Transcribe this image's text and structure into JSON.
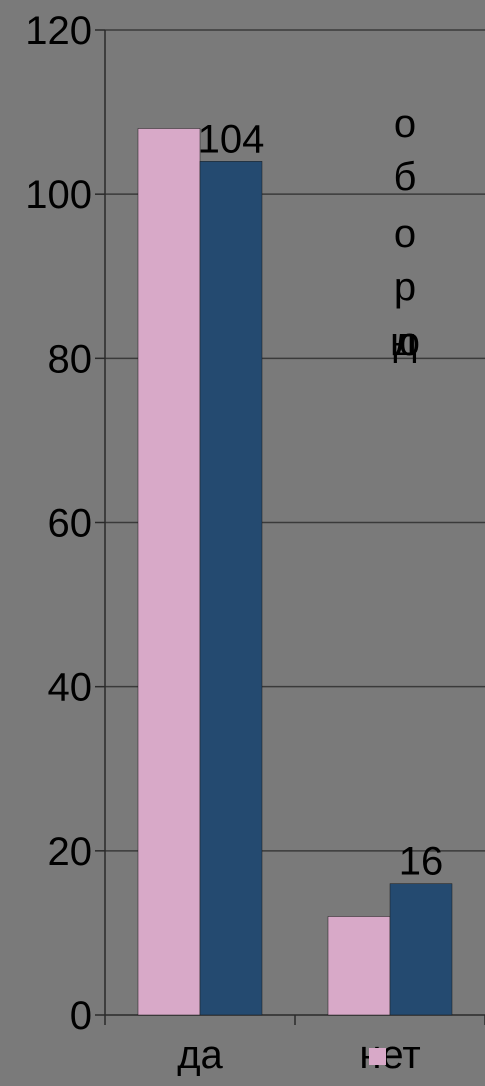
{
  "chart_data": {
    "type": "bar",
    "categories": [
      "да",
      "нет"
    ],
    "series": [
      {
        "values": [
          108,
          12
        ],
        "color": "#d8a9c8"
      },
      {
        "values": [
          104,
          16
        ],
        "color": "#244a70"
      }
    ],
    "data_labels": {
      "series_index": 1,
      "values": [
        "104",
        "16"
      ]
    },
    "yticks": [
      "0",
      "20",
      "40",
      "60",
      "80",
      "100",
      "120"
    ],
    "ylim": [
      0,
      120
    ],
    "grid": true,
    "legend_marker_color": "#d8a9c8",
    "overlap_text_chars": [
      "о",
      "б",
      "о",
      "р",
      "д",
      "л",
      "ю"
    ],
    "title": "",
    "xlabel": "",
    "ylabel": ""
  }
}
